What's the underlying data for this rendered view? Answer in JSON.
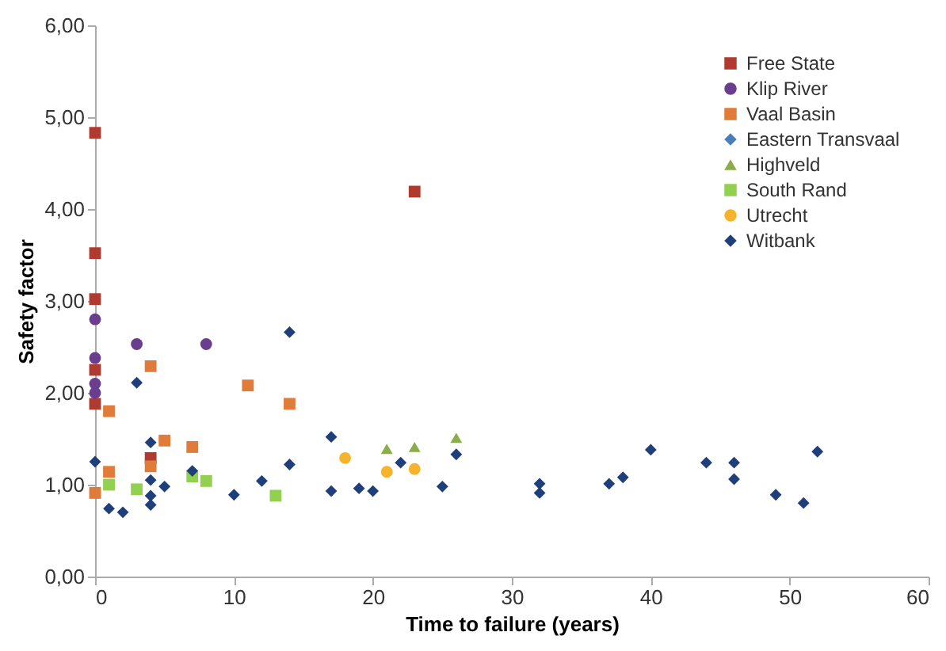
{
  "chart_data": {
    "type": "scatter",
    "xlabel": "Time to failure (years)",
    "ylabel": "Safety factor",
    "xlim": [
      0,
      60
    ],
    "xticks": [
      0,
      10,
      20,
      30,
      40,
      50,
      60
    ],
    "ylim": [
      0,
      6
    ],
    "yticks": [
      {
        "value": 0,
        "label": "0,00"
      },
      {
        "value": 1,
        "label": "1,00"
      },
      {
        "value": 2,
        "label": "2,00"
      },
      {
        "value": 3,
        "label": "3,00"
      },
      {
        "value": 4,
        "label": "4,00"
      },
      {
        "value": 5,
        "label": "5,00"
      },
      {
        "value": 6,
        "label": "6,00"
      }
    ],
    "grid": false,
    "legend": "top right",
    "series": [
      {
        "name": "Free State",
        "color": "#b03a2e",
        "marker": "square",
        "x": [
          0,
          0,
          0,
          0,
          0,
          4,
          23
        ],
        "values": [
          4.83,
          3.52,
          3.02,
          2.25,
          1.88,
          1.29,
          4.19
        ]
      },
      {
        "name": "Klip River",
        "color": "#6a3d8f",
        "marker": "circle",
        "x": [
          0,
          0,
          0,
          0,
          3,
          8
        ],
        "values": [
          2.8,
          2.38,
          2.1,
          2.0,
          2.53,
          2.53
        ]
      },
      {
        "name": "Vaal Basin",
        "color": "#e07b39",
        "marker": "square",
        "x": [
          0,
          1,
          1,
          4,
          4,
          5,
          7,
          11,
          14
        ],
        "values": [
          0.91,
          1.14,
          1.8,
          2.29,
          1.2,
          1.48,
          1.41,
          2.08,
          1.88
        ]
      },
      {
        "name": "Eastern Transvaal",
        "color": "#4a7ebb",
        "marker": "diamond"
      },
      {
        "name": "Highveld",
        "color": "#8aac4a",
        "marker": "triangle",
        "x": [
          21,
          23,
          26
        ],
        "values": [
          1.39,
          1.41,
          1.51
        ]
      },
      {
        "name": "South Rand",
        "color": "#92d050",
        "marker": "square",
        "x": [
          1,
          3,
          7,
          8,
          13
        ],
        "values": [
          1.0,
          0.95,
          1.09,
          1.04,
          0.88
        ]
      },
      {
        "name": "Utrecht",
        "color": "#f7b32b",
        "marker": "circle",
        "x": [
          18,
          21,
          23
        ],
        "values": [
          1.29,
          1.14,
          1.17
        ]
      },
      {
        "name": "Witbank",
        "color": "#1f3f7a",
        "marker": "diamond",
        "x": [
          14,
          3,
          4,
          0,
          4,
          5,
          7,
          4,
          4,
          1,
          2,
          10,
          12,
          14,
          17,
          17,
          19,
          20,
          22,
          25,
          26,
          32,
          32,
          37,
          38,
          40,
          44,
          46,
          46,
          49,
          51,
          52
        ],
        "values": [
          2.66,
          2.11,
          1.46,
          1.25,
          1.05,
          0.98,
          1.15,
          0.88,
          0.78,
          0.74,
          0.7,
          0.89,
          1.04,
          1.22,
          1.52,
          0.93,
          0.96,
          0.93,
          1.24,
          0.98,
          1.33,
          1.01,
          0.91,
          1.01,
          1.08,
          1.38,
          1.24,
          1.24,
          1.06,
          0.89,
          0.8,
          1.36
        ]
      }
    ]
  }
}
